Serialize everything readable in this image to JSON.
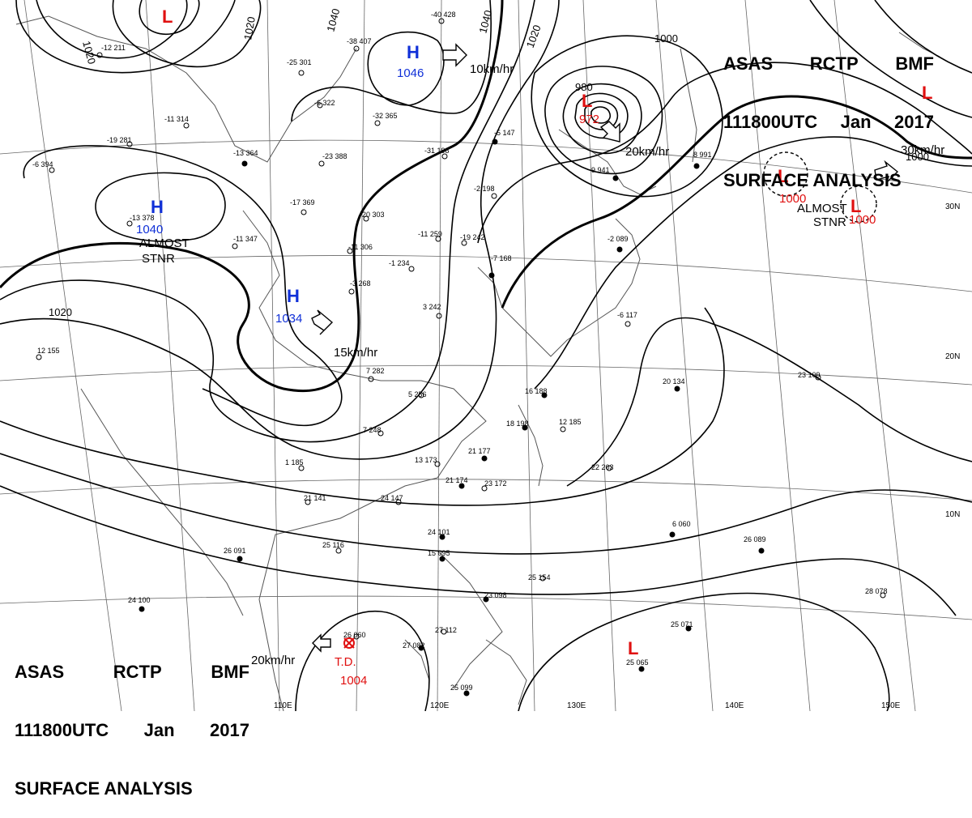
{
  "header": {
    "line1": [
      "ASAS",
      "RCTP",
      "BMF"
    ],
    "line2": [
      "111800UTC",
      "Jan",
      "2017"
    ],
    "line3": "SURFACE ANALYSIS"
  },
  "colors": {
    "high": "#1030d8",
    "low": "#e01010",
    "lines": "#000000",
    "coast": "#555555"
  },
  "systems": [
    {
      "id": "h1",
      "type": "H",
      "pressure": "1046",
      "motion": "10km/hr"
    },
    {
      "id": "h2",
      "type": "H",
      "pressure": "1040",
      "motion": "ALMOST STNR"
    },
    {
      "id": "h3",
      "type": "H",
      "pressure": "1034",
      "motion": "15km/hr"
    },
    {
      "id": "l1",
      "type": "L",
      "pressure": "",
      "motion": ""
    },
    {
      "id": "l2",
      "type": "L",
      "pressure": "972",
      "motion": "20km/hr"
    },
    {
      "id": "l3",
      "type": "L",
      "pressure": "1000",
      "motion": "ALMOST STNR"
    },
    {
      "id": "l4",
      "type": "L",
      "pressure": "1000",
      "motion": "30km/hr"
    },
    {
      "id": "l5",
      "type": "L",
      "pressure": "",
      "motion": ""
    },
    {
      "id": "l6",
      "type": "L",
      "pressure": "",
      "motion": ""
    },
    {
      "id": "td",
      "type": "T.D.",
      "pressure": "1004",
      "motion": "20km/hr"
    }
  ],
  "isobar_labels": [
    "1020",
    "1020",
    "1040",
    "1040",
    "1020",
    "1000",
    "980",
    "1020",
    "1000"
  ],
  "latitude_labels": [
    "30N",
    "20N",
    "10N"
  ],
  "longitude_labels": [
    "110E",
    "120E",
    "130E",
    "140E",
    "150E"
  ],
  "stations": [
    "-40 428",
    "-38 407",
    "-25 301",
    "-32 365",
    "-23 388",
    "-13 364",
    "-17 369",
    "-20 303",
    "-11 347",
    "-11 306",
    "-11 259",
    "-19 242",
    "-1 234",
    "-3 268",
    "-13 378",
    "-31 198",
    "-2 198",
    "-5 147",
    "-7 168",
    "3 242",
    "7 282",
    "5 256",
    "7 248",
    "1 185",
    "21 141",
    "24 147",
    "25 116",
    "26 091",
    "24 100",
    "24 101",
    "15 095",
    "25 154",
    "23 098",
    "27 112",
    "27 082",
    "26 060",
    "25 099",
    "26 089",
    "28 078",
    "25 071",
    "25 065",
    "22 203",
    "21 177",
    "21 174",
    "23 172",
    "18 198",
    "16 188",
    "12 185",
    "13 173",
    "20 134",
    "23 109",
    "12 155",
    "-6 117",
    "-2 089",
    "9 941",
    "8 991",
    "-19 281",
    "-6 394",
    "-11 314",
    "-6 322",
    "6 060",
    "-12 211"
  ]
}
